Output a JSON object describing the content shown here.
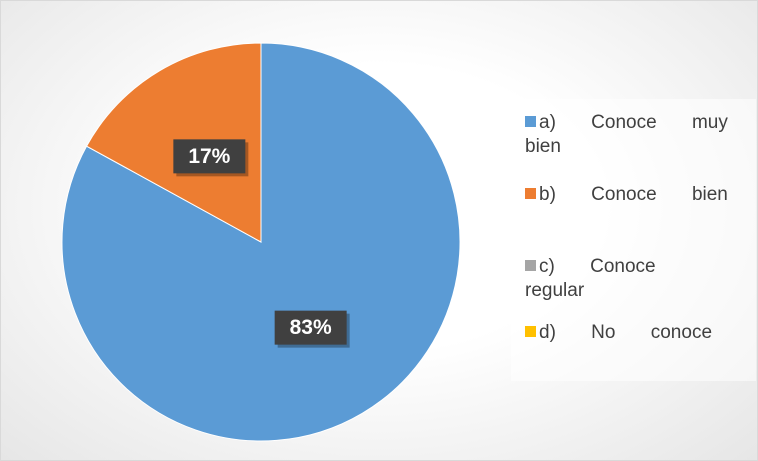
{
  "chart_data": {
    "type": "pie",
    "categories": [
      "a) Conoce muy bien",
      "b) Conoce bien",
      "c) Conoce regular",
      "d) No conoce"
    ],
    "values": [
      83,
      17,
      0,
      0
    ],
    "value_labels": [
      "83%",
      "17%",
      null,
      null
    ],
    "colors": [
      "#5b9bd5",
      "#ed7d31",
      "#a5a5a5",
      "#ffc000"
    ],
    "legend": "right"
  }
}
